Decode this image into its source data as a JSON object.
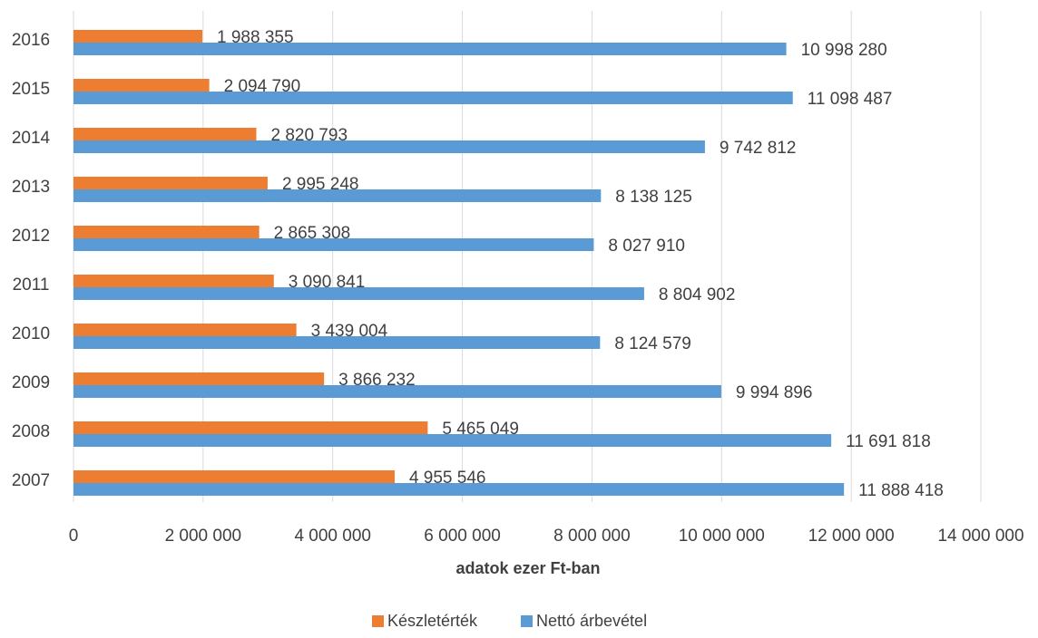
{
  "chart_data": {
    "type": "bar",
    "orientation": "horizontal",
    "categories": [
      "2016",
      "2015",
      "2014",
      "2013",
      "2012",
      "2011",
      "2010",
      "2009",
      "2008",
      "2007"
    ],
    "series": [
      {
        "name": "Készletérték",
        "color": "#ED7D31",
        "values": [
          1988355,
          2094790,
          2820793,
          2995248,
          2865308,
          3090841,
          3439004,
          3866232,
          5465049,
          4955546
        ],
        "labels": [
          "1 988 355",
          "2 094 790",
          "2 820 793",
          "2 995 248",
          "2 865 308",
          "3 090 841",
          "3 439 004",
          "3 866 232",
          "5 465 049",
          "4 955 546"
        ]
      },
      {
        "name": "Nettó árbevétel",
        "color": "#5B9BD5",
        "values": [
          10998280,
          11098487,
          9742812,
          8138125,
          8027910,
          8804902,
          8124579,
          9994896,
          11691818,
          11888418
        ],
        "labels": [
          "10 998 280",
          "11 098 487",
          "9 742 812",
          "8 138 125",
          "8 027 910",
          "8 804 902",
          "8 124 579",
          "9 994 896",
          "11 691 818",
          "11 888 418"
        ]
      }
    ],
    "xlim": [
      0,
      14000000
    ],
    "x_ticks": [
      0,
      2000000,
      4000000,
      6000000,
      8000000,
      10000000,
      12000000,
      14000000
    ],
    "x_tick_labels": [
      "0",
      "2 000 000",
      "4 000 000",
      "6 000 000",
      "8 000 000",
      "10 000 000",
      "12 000 000",
      "14 000 000"
    ],
    "xlabel": "adatok ezer Ft-ban",
    "ylabel": "",
    "grid": true,
    "legend_position": "bottom",
    "gridline_color": "#D9D9D9",
    "text_color": "#404040"
  }
}
